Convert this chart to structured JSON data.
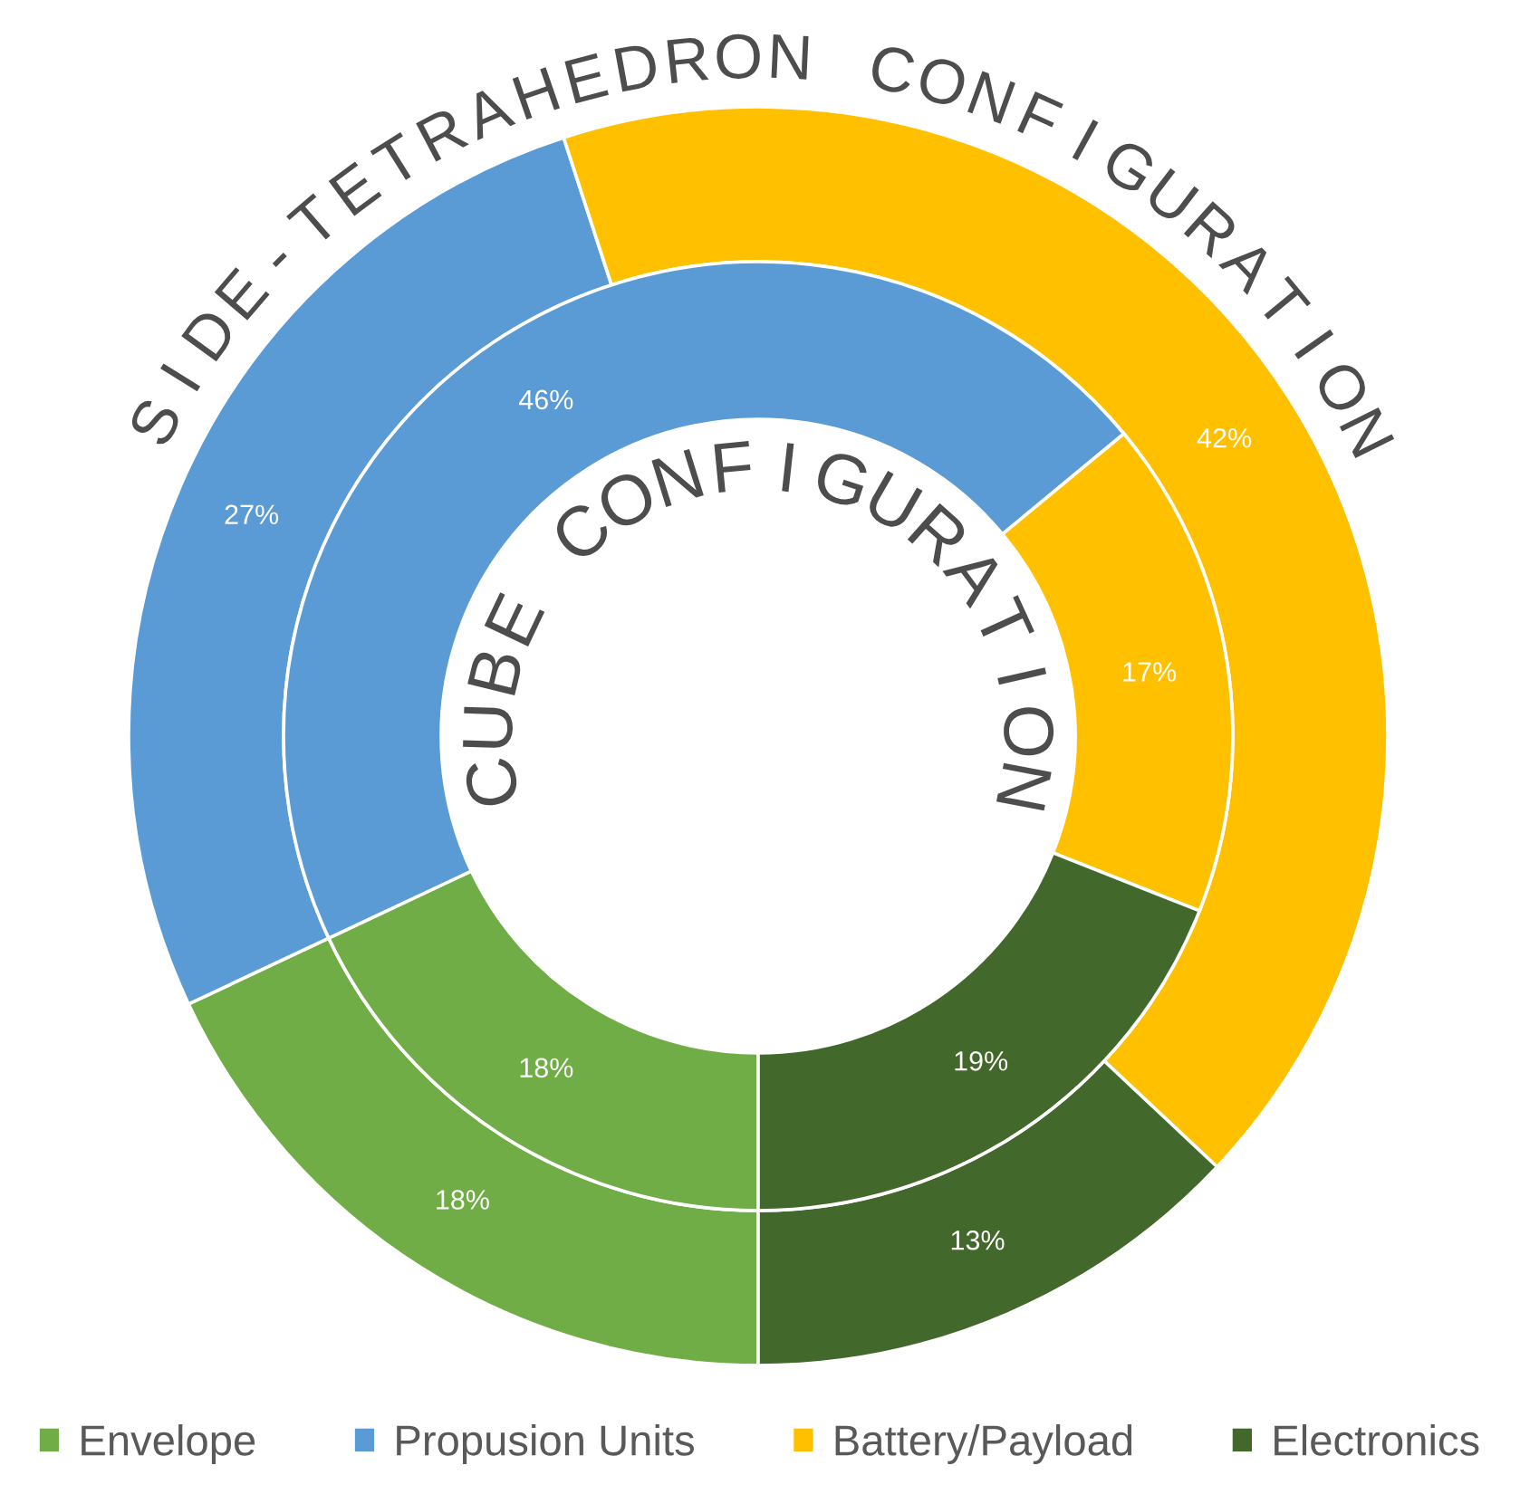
{
  "chart_data": {
    "type": "donut",
    "categories": [
      "Envelope",
      "Propusion Units",
      "Battery/Payload",
      "Electronics"
    ],
    "colors": [
      "#70ad47",
      "#5b9bd5",
      "#ffc000",
      "#43682b"
    ],
    "series": [
      {
        "name": "SIDE-TETRAHEDRON CONFIGURATION",
        "values": [
          18,
          27,
          42,
          13
        ],
        "value_labels": [
          "18%",
          "27%",
          "42%",
          "13%"
        ]
      },
      {
        "name": "CUBE CONFIGURATION",
        "values": [
          18,
          46,
          17,
          19
        ],
        "value_labels": [
          "18%",
          "46%",
          "17%",
          "19%"
        ]
      }
    ],
    "legend": "bottom"
  }
}
